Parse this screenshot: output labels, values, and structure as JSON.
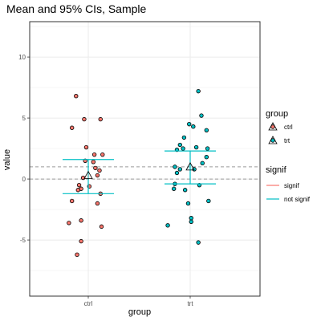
{
  "chart_data": {
    "type": "scatter",
    "title": "Mean and 95% CIs, Sample",
    "xlabel": "group",
    "ylabel": "value",
    "categories": [
      "ctrl",
      "trt"
    ],
    "ylim": [
      -9.6,
      12.9
    ],
    "yticks": [
      -5,
      0,
      5,
      10
    ],
    "ytick_labels": [
      "-5",
      "0",
      "5",
      "10"
    ],
    "grid": true,
    "reference_lines": [
      0,
      1
    ],
    "series": [
      {
        "name": "ctrl",
        "color": "#F8766D",
        "points": [
          [
            -0.12,
            6.8
          ],
          [
            -0.16,
            4.2
          ],
          [
            -0.04,
            4.9
          ],
          [
            0.12,
            4.9
          ],
          [
            -0.02,
            2.6
          ],
          [
            0.06,
            2.0
          ],
          [
            0.14,
            2.0
          ],
          [
            -0.03,
            1.5
          ],
          [
            0.05,
            1.4
          ],
          [
            0.07,
            0.9
          ],
          [
            0.11,
            0.7
          ],
          [
            0.09,
            0.3
          ],
          [
            -0.05,
            0.1
          ],
          [
            -0.09,
            -0.5
          ],
          [
            0.01,
            -0.6
          ],
          [
            -0.07,
            -0.8
          ],
          [
            -0.1,
            -0.9
          ],
          [
            0.12,
            -1.2
          ],
          [
            -0.16,
            -1.8
          ],
          [
            0.09,
            -2.0
          ],
          [
            -0.19,
            -3.6
          ],
          [
            -0.07,
            -3.4
          ],
          [
            0.13,
            -3.9
          ],
          [
            -0.07,
            -5.1
          ],
          [
            -0.11,
            -6.2
          ]
        ],
        "mean": 0.3,
        "ci": [
          -1.2,
          1.6
        ],
        "signif": "not signif"
      },
      {
        "name": "trt",
        "color": "#00BFC4",
        "points": [
          [
            0.08,
            7.2
          ],
          [
            -0.01,
            4.5
          ],
          [
            0.03,
            4.3
          ],
          [
            0.11,
            5.2
          ],
          [
            -0.06,
            3.4
          ],
          [
            0.16,
            4.0
          ],
          [
            -0.1,
            2.8
          ],
          [
            -0.13,
            2.4
          ],
          [
            -0.07,
            2.5
          ],
          [
            0.06,
            2.6
          ],
          [
            0.17,
            2.5
          ],
          [
            0.16,
            1.8
          ],
          [
            -0.15,
            1.0
          ],
          [
            -0.1,
            0.8
          ],
          [
            0.04,
            0.8
          ],
          [
            0.12,
            1.3
          ],
          [
            -0.13,
            0.5
          ],
          [
            -0.15,
            -0.4
          ],
          [
            0.09,
            -0.5
          ],
          [
            -0.16,
            -0.8
          ],
          [
            -0.05,
            -0.9
          ],
          [
            -0.02,
            -2.0
          ],
          [
            0.18,
            -1.8
          ],
          [
            0.01,
            -3.5
          ],
          [
            -0.22,
            -3.8
          ],
          [
            0.01,
            -3.2
          ],
          [
            0.08,
            -5.2
          ]
        ],
        "mean": 1.0,
        "ci": [
          -0.4,
          2.3
        ],
        "signif": "not signif"
      }
    ],
    "legend": {
      "placement": "right",
      "groups": [
        {
          "title": "group",
          "entries": [
            {
              "label": "ctrl",
              "color": "#F8766D"
            },
            {
              "label": "trt",
              "color": "#00BFC4"
            }
          ]
        },
        {
          "title": "signif",
          "entries": [
            {
              "label": "signif",
              "color": "#F8766D"
            },
            {
              "label": "not signif",
              "color": "#00BFC4"
            }
          ]
        }
      ]
    }
  }
}
